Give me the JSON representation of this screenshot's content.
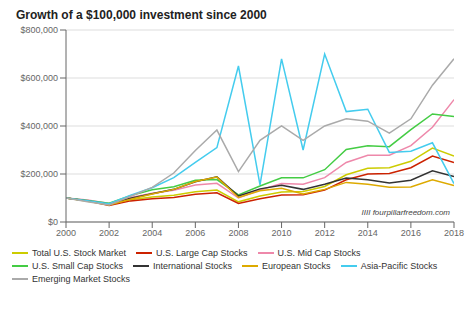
{
  "chart_data": {
    "type": "line",
    "title": "Growth of a $100,000 investment since 2000",
    "x": [
      2000,
      2001,
      2002,
      2003,
      2004,
      2005,
      2006,
      2007,
      2008,
      2009,
      2010,
      2011,
      2012,
      2013,
      2014,
      2015,
      2016,
      2017,
      2018
    ],
    "series": [
      {
        "name": "Total U.S. Stock Market",
        "color": "#cccc00",
        "values": [
          100000,
          89000,
          72000,
          93000,
          104000,
          111000,
          126000,
          133000,
          84000,
          108000,
          125000,
          127000,
          148000,
          197000,
          224000,
          226000,
          253000,
          308000,
          275000
        ]
      },
      {
        "name": "U.S. Large Cap Stocks",
        "color": "#cc2200",
        "values": [
          100000,
          88000,
          69000,
          88000,
          97000,
          102000,
          116000,
          122000,
          77000,
          97000,
          112000,
          114000,
          133000,
          176000,
          200000,
          202000,
          226000,
          275000,
          248000
        ]
      },
      {
        "name": "U.S. Mid Cap Stocks",
        "color": "#ee88aa",
        "values": [
          100000,
          92000,
          77000,
          102000,
          120000,
          132000,
          154000,
          161000,
          100000,
          133000,
          160000,
          157000,
          185000,
          248000,
          278000,
          278000,
          318000,
          395000,
          510000
        ]
      },
      {
        "name": "U.S. Small Cap Stocks",
        "color": "#44cc44",
        "values": [
          100000,
          90000,
          78000,
          110000,
          134000,
          147000,
          174000,
          177000,
          113000,
          150000,
          184000,
          184000,
          218000,
          302000,
          318000,
          314000,
          385000,
          450000,
          440000
        ]
      },
      {
        "name": "International Stocks",
        "color": "#333333",
        "values": [
          100000,
          88000,
          74000,
          99000,
          118000,
          136000,
          168000,
          188000,
          108000,
          138000,
          153000,
          136000,
          157000,
          183000,
          176000,
          163000,
          174000,
          213000,
          190000
        ]
      },
      {
        "name": "European Stocks",
        "color": "#ddaa00",
        "values": [
          100000,
          86000,
          71000,
          95000,
          117000,
          136000,
          169000,
          187000,
          102000,
          130000,
          141000,
          117000,
          136000,
          165000,
          157000,
          145000,
          146000,
          176000,
          152000
        ]
      },
      {
        "name": "Asia-Pacific Stocks",
        "color": "#44ccee",
        "values": [
          100000,
          89000,
          76000,
          112000,
          143000,
          185000,
          248000,
          310000,
          650000,
          155000,
          680000,
          300000,
          700000,
          460000,
          470000,
          290000,
          295000,
          330000,
          160000
        ]
      },
      {
        "name": "Emerging Market Stocks",
        "color": "#aaaaaa",
        "values": [
          100000,
          84000,
          71000,
          107000,
          144000,
          204000,
          298000,
          383000,
          210000,
          340000,
          400000,
          340000,
          400000,
          430000,
          420000,
          370000,
          430000,
          570000,
          680000
        ]
      }
    ],
    "xlim": [
      2000,
      2018
    ],
    "xticks": [
      2000,
      2002,
      2004,
      2006,
      2008,
      2010,
      2012,
      2014,
      2016,
      2018
    ],
    "ylim": [
      0,
      800000
    ],
    "yticks": [
      {
        "value": 0,
        "label": "$0"
      },
      {
        "value": 200000,
        "label": "$200,000"
      },
      {
        "value": 400000,
        "label": "$400,000"
      },
      {
        "value": 600000,
        "label": "$600,000"
      },
      {
        "value": 800000,
        "label": "$800,000"
      }
    ],
    "grid": true,
    "legend": "lower left",
    "annotations": [
      "IIII fourpillarfreedom.com"
    ]
  }
}
